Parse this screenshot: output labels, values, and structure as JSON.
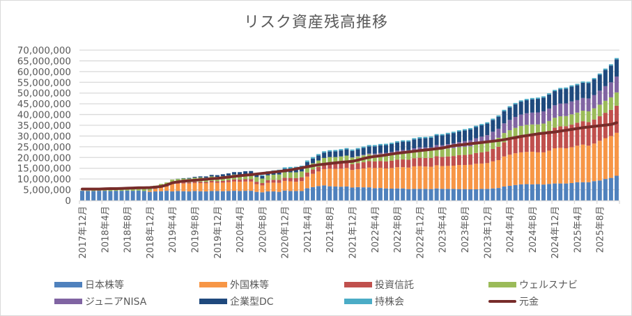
{
  "chart_data": {
    "type": "bar",
    "stacked": true,
    "title": "リスク資産残高推移",
    "xlabel": "",
    "ylabel": "",
    "ylim": [
      0,
      70000000
    ],
    "yticks": [
      0,
      5000000,
      10000000,
      15000000,
      20000000,
      25000000,
      30000000,
      35000000,
      40000000,
      45000000,
      50000000,
      55000000,
      60000000,
      65000000,
      70000000
    ],
    "ytick_labels": [
      "0",
      "5,000,000",
      "10,000,000",
      "15,000,000",
      "20,000,000",
      "25,000,000",
      "30,000,000",
      "35,000,000",
      "40,000,000",
      "45,000,000",
      "50,000,000",
      "55,000,000",
      "60,000,000",
      "65,000,000",
      "70,000,000"
    ],
    "grid": true,
    "legend_position": "bottom",
    "xtick_labels": [
      "2017年12月",
      "2018年4月",
      "2018年8月",
      "2018年12月",
      "2019年4月",
      "2019年8月",
      "2019年12月",
      "2020年4月",
      "2020年8月",
      "2020年12月",
      "2021年4月",
      "2021年8月",
      "2021年12月",
      "2022年4月",
      "2022年8月",
      "2022年12月",
      "2023年4月",
      "2023年8月",
      "2023年12月",
      "2024年4月",
      "2024年8月",
      "2024年12月",
      "2025年4月",
      "2025年8月"
    ],
    "start_month": "2017-12",
    "month_count": 96,
    "series": [
      {
        "name": "日本株等",
        "color": "#4f81bd",
        "kind": "bar",
        "values": [
          4500000,
          4400000,
          4400000,
          4500000,
          4500000,
          4400000,
          4500000,
          4500000,
          4600000,
          4500000,
          4600000,
          4400000,
          4000000,
          4200000,
          4300000,
          4500000,
          4200000,
          4400000,
          4300000,
          4200000,
          4400000,
          4300000,
          4200000,
          4400000,
          4400000,
          4300000,
          4400000,
          4500000,
          4400000,
          4500000,
          4500000,
          4000000,
          3800000,
          4200000,
          4200000,
          4000000,
          4600000,
          4400000,
          4400000,
          4400000,
          5700000,
          6200000,
          6700000,
          7000000,
          6600000,
          6500000,
          6400000,
          6500000,
          6000000,
          6200000,
          6100000,
          6100000,
          5700000,
          5800000,
          5600000,
          5500000,
          5600000,
          5600000,
          5300000,
          5400000,
          5400000,
          5400000,
          5300000,
          5600000,
          5400000,
          5400000,
          5400000,
          5300000,
          5300000,
          5200000,
          5200000,
          5400000,
          5400000,
          5600000,
          5800000,
          6500000,
          6800000,
          7200000,
          7500000,
          7600000,
          7500000,
          7600000,
          7400000,
          7700000,
          7900000,
          7900000,
          7900000,
          8100000,
          8500000,
          8500000,
          8500000,
          9000000,
          9300000,
          10000000,
          10500000,
          11500000
        ]
      },
      {
        "name": "外国株等",
        "color": "#f79646",
        "kind": "bar",
        "values": [
          0,
          0,
          0,
          0,
          0,
          0,
          0,
          0,
          0,
          0,
          0,
          0,
          500000,
          1200000,
          1700000,
          2000000,
          3400000,
          3400000,
          3600000,
          3700000,
          3700000,
          3800000,
          3800000,
          4000000,
          3800000,
          4000000,
          4100000,
          4300000,
          4300000,
          4300000,
          4300000,
          3600000,
          3200000,
          4000000,
          4100000,
          4200000,
          4500000,
          4500000,
          4300000,
          4600000,
          5400000,
          6200000,
          6800000,
          7600000,
          8200000,
          8200000,
          8400000,
          8600000,
          8200000,
          8400000,
          8800000,
          9200000,
          9400000,
          9400000,
          9300000,
          9600000,
          9900000,
          9900000,
          10000000,
          10500000,
          10600000,
          10400000,
          10400000,
          10800000,
          10600000,
          10700000,
          10800000,
          11200000,
          11200000,
          11400000,
          11900000,
          11800000,
          12000000,
          12600000,
          13000000,
          14000000,
          14500000,
          14800000,
          14900000,
          15000000,
          15200000,
          14800000,
          15000000,
          15500000,
          16400000,
          16600000,
          16400000,
          16700000,
          17000000,
          17500000,
          17000000,
          17500000,
          18500000,
          19000000,
          19500000,
          20000000
        ]
      },
      {
        "name": "投資信託",
        "color": "#c0504d",
        "kind": "bar",
        "values": [
          0,
          0,
          0,
          0,
          0,
          0,
          0,
          0,
          0,
          0,
          0,
          0,
          100000,
          200000,
          300000,
          400000,
          500000,
          500000,
          500000,
          500000,
          600000,
          600000,
          600000,
          700000,
          700000,
          800000,
          900000,
          1000000,
          1000000,
          1100000,
          1100000,
          1100000,
          1100000,
          1200000,
          1300000,
          1400000,
          1500000,
          1600000,
          1700000,
          1800000,
          1900000,
          2000000,
          2100000,
          2200000,
          2400000,
          2500000,
          2600000,
          2700000,
          2700000,
          2800000,
          2900000,
          3000000,
          3100000,
          3200000,
          3300000,
          3400000,
          3500000,
          3600000,
          3700000,
          3800000,
          3900000,
          4000000,
          4100000,
          4200000,
          4300000,
          4400000,
          4500000,
          4600000,
          4700000,
          4800000,
          5000000,
          5200000,
          5400000,
          5800000,
          6200000,
          6600000,
          7000000,
          7400000,
          7800000,
          8100000,
          8400000,
          8600000,
          8900000,
          9200000,
          9600000,
          10000000,
          10300000,
          10500000,
          10700000,
          10900000,
          11000000,
          11200000,
          11400000,
          11800000,
          12200000,
          12600000
        ]
      },
      {
        "name": "ウェルスナビ",
        "color": "#9bbb59",
        "kind": "bar",
        "values": [
          100000,
          200000,
          300000,
          400000,
          500000,
          600000,
          700000,
          800000,
          900000,
          1000000,
          1100000,
          1100000,
          1200000,
          1300000,
          1400000,
          1500000,
          1600000,
          1700000,
          1800000,
          1800000,
          1900000,
          2000000,
          2000000,
          2100000,
          2100000,
          2200000,
          2200000,
          2300000,
          2300000,
          2400000,
          2400000,
          2200000,
          2100000,
          2300000,
          2400000,
          2500000,
          2500000,
          2600000,
          2700000,
          2700000,
          2800000,
          2900000,
          3000000,
          3000000,
          3000000,
          3000000,
          3100000,
          3100000,
          3100000,
          3100000,
          3200000,
          3200000,
          3100000,
          3200000,
          3300000,
          3300000,
          3300000,
          3400000,
          3300000,
          3400000,
          3500000,
          3500000,
          3500000,
          3600000,
          3600000,
          3700000,
          3700000,
          3700000,
          3800000,
          3800000,
          3900000,
          4000000,
          4000000,
          4100000,
          4200000,
          4300000,
          4400000,
          4400000,
          4500000,
          4500000,
          4300000,
          4400000,
          4500000,
          4600000,
          4600000,
          4700000,
          4700000,
          4800000,
          4700000,
          4900000,
          5000000,
          5200000,
          5400000,
          5600000,
          5800000,
          6200000
        ]
      },
      {
        "name": "ジュニアNISA",
        "color": "#8064a2",
        "kind": "bar",
        "values": [
          0,
          0,
          0,
          0,
          0,
          0,
          0,
          0,
          0,
          0,
          0,
          0,
          0,
          0,
          0,
          0,
          0,
          0,
          0,
          0,
          0,
          0,
          0,
          0,
          0,
          0,
          0,
          0,
          0,
          0,
          0,
          0,
          0,
          0,
          0,
          0,
          0,
          0,
          0,
          0,
          0,
          0,
          0,
          0,
          0,
          0,
          0,
          0,
          100000,
          200000,
          300000,
          400000,
          500000,
          600000,
          700000,
          800000,
          900000,
          1000000,
          1100000,
          1200000,
          1300000,
          1400000,
          1500000,
          1600000,
          1800000,
          2000000,
          2200000,
          2400000,
          2600000,
          2800000,
          3000000,
          3300000,
          3600000,
          3900000,
          4200000,
          4500000,
          4800000,
          5100000,
          5300000,
          5400000,
          5500000,
          5600000,
          5700000,
          5800000,
          5800000,
          5900000,
          5900000,
          6000000,
          5800000,
          5900000,
          6000000,
          6200000,
          6500000,
          6800000,
          7000000,
          7400000
        ]
      },
      {
        "name": "企業型DC",
        "color": "#1f497d",
        "kind": "bar",
        "values": [
          0,
          0,
          0,
          0,
          0,
          0,
          0,
          0,
          0,
          0,
          0,
          0,
          0,
          0,
          0,
          0,
          0,
          100000,
          200000,
          300000,
          400000,
          500000,
          600000,
          700000,
          800000,
          900000,
          1000000,
          1100000,
          1200000,
          1300000,
          1400000,
          1300000,
          1200000,
          1400000,
          1500000,
          1600000,
          1700000,
          1800000,
          1900000,
          2000000,
          2100000,
          2200000,
          2300000,
          2400000,
          2600000,
          2700000,
          2800000,
          2900000,
          3000000,
          3100000,
          3200000,
          3300000,
          3400000,
          3500000,
          3600000,
          3700000,
          3800000,
          3900000,
          4000000,
          4100000,
          4200000,
          4300000,
          4400000,
          4500000,
          4600000,
          4700000,
          4800000,
          4900000,
          5000000,
          5100000,
          5200000,
          5300000,
          5400000,
          5500000,
          5600000,
          5700000,
          5800000,
          5900000,
          6000000,
          6100000,
          6200000,
          6300000,
          6400000,
          6500000,
          6600000,
          6700000,
          6800000,
          6900000,
          7000000,
          7100000,
          7200000,
          7300000,
          7400000,
          7600000,
          7800000,
          8000000
        ]
      },
      {
        "name": "持株会",
        "color": "#4bacc6",
        "kind": "bar",
        "values": [
          0,
          0,
          0,
          0,
          0,
          0,
          0,
          0,
          0,
          0,
          0,
          0,
          0,
          0,
          0,
          0,
          0,
          0,
          0,
          0,
          0,
          0,
          0,
          0,
          0,
          0,
          0,
          0,
          0,
          0,
          0,
          300000,
          400000,
          500000,
          500000,
          600000,
          600000,
          700000,
          700000,
          700000,
          700000,
          700000,
          700000,
          700000,
          600000,
          600000,
          600000,
          600000,
          600000,
          600000,
          600000,
          600000,
          600000,
          600000,
          600000,
          600000,
          600000,
          600000,
          600000,
          600000,
          600000,
          600000,
          600000,
          600000,
          600000,
          600000,
          600000,
          600000,
          600000,
          600000,
          600000,
          600000,
          600000,
          600000,
          600000,
          600000,
          600000,
          600000,
          600000,
          600000,
          600000,
          600000,
          600000,
          600000,
          600000,
          600000,
          600000,
          600000,
          600000,
          600000,
          600000,
          600000,
          600000,
          600000,
          600000,
          600000
        ]
      },
      {
        "name": "元金",
        "color": "#772c2a",
        "kind": "line",
        "values": [
          5300000,
          5300000,
          5300000,
          5300000,
          5400000,
          5500000,
          5500000,
          5600000,
          5700000,
          5800000,
          5900000,
          5900000,
          6000000,
          6200000,
          6500000,
          7200000,
          8200000,
          8700000,
          9000000,
          9200000,
          9400000,
          9700000,
          9900000,
          10100000,
          10300000,
          10600000,
          10900000,
          11200000,
          11500000,
          11800000,
          12000000,
          12300000,
          12600000,
          12900000,
          13200000,
          13500000,
          13800000,
          14200000,
          14700000,
          15200000,
          15700000,
          16200000,
          16600000,
          16900000,
          17200000,
          17500000,
          17800000,
          18000000,
          18200000,
          18800000,
          19500000,
          20100000,
          20500000,
          20800000,
          21200000,
          21600000,
          22000000,
          22300000,
          22600000,
          22900000,
          23200000,
          23500000,
          23800000,
          24100000,
          24400000,
          25000000,
          25500000,
          25800000,
          26100000,
          26400000,
          26700000,
          27000000,
          27300000,
          27600000,
          27900000,
          28300000,
          28800000,
          29300000,
          29800000,
          30200000,
          30600000,
          31000000,
          31300000,
          31600000,
          31900000,
          32300000,
          32700000,
          33100000,
          33500000,
          33900000,
          34200000,
          34500000,
          34800000,
          35100000,
          35400000,
          36200000
        ]
      }
    ]
  }
}
